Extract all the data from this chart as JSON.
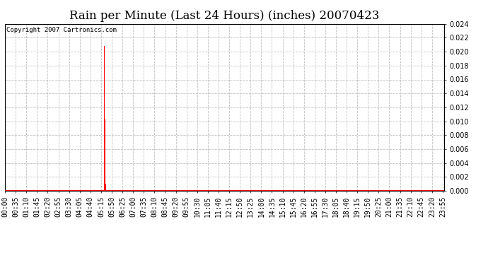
{
  "title": "Rain per Minute (Last 24 Hours) (inches) 20070423",
  "copyright_text": "Copyright 2007 Cartronics.com",
  "bar_color": "#ff0000",
  "background_color": "#ffffff",
  "grid_color": "#c0c0c0",
  "axis_line_color": "#ff0000",
  "ylim": [
    0.0,
    0.024
  ],
  "yticks": [
    0.0,
    0.002,
    0.004,
    0.006,
    0.008,
    0.01,
    0.012,
    0.014,
    0.016,
    0.018,
    0.02,
    0.022,
    0.024
  ],
  "total_minutes": 1440,
  "data_points": [
    {
      "minute": 325,
      "value": 0.0208
    },
    {
      "minute": 326,
      "value": 0.0104
    },
    {
      "minute": 327,
      "value": 0.0104
    },
    {
      "minute": 328,
      "value": 0.0104
    },
    {
      "minute": 329,
      "value": 0.001
    },
    {
      "minute": 330,
      "value": 0.001
    }
  ],
  "xtick_interval_minutes": 35,
  "title_fontsize": 12,
  "tick_fontsize": 7,
  "copyright_fontsize": 6.5,
  "bar_width": 3.0,
  "figsize": [
    6.9,
    3.75
  ],
  "dpi": 100
}
